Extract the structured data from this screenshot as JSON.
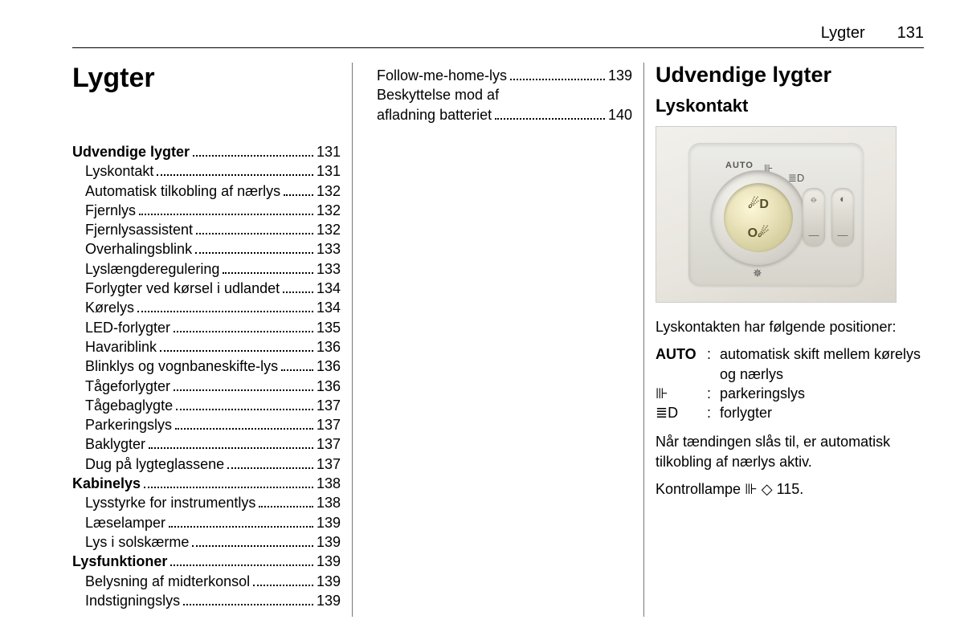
{
  "header": {
    "title": "Lygter",
    "page": "131"
  },
  "col1": {
    "chapter": "Lygter",
    "toc": [
      {
        "label": "Udvendige lygter",
        "page": "131",
        "bold": true
      },
      {
        "label": "Lyskontakt",
        "page": "131",
        "sub": true
      },
      {
        "label": "Automatisk tilkobling af nærlys",
        "page": "132",
        "sub": true
      },
      {
        "label": "Fjernlys",
        "page": "132",
        "sub": true
      },
      {
        "label": "Fjernlysassistent",
        "page": "132",
        "sub": true
      },
      {
        "label": "Overhalingsblink",
        "page": "133",
        "sub": true
      },
      {
        "label": "Lyslængderegulering",
        "page": "133",
        "sub": true
      },
      {
        "label": "Forlygter ved kørsel i udlandet",
        "page": "134",
        "sub": true
      },
      {
        "label": "Kørelys",
        "page": "134",
        "sub": true
      },
      {
        "label": "LED-forlygter",
        "page": "135",
        "sub": true
      },
      {
        "label": "Havariblink",
        "page": "136",
        "sub": true
      },
      {
        "label": "Blinklys og vognbaneskifte-lys",
        "page": "136",
        "sub": true
      },
      {
        "label": "Tågeforlygter",
        "page": "136",
        "sub": true
      },
      {
        "label": "Tågebaglygte",
        "page": "137",
        "sub": true
      },
      {
        "label": "Parkeringslys",
        "page": "137",
        "sub": true
      },
      {
        "label": "Baklygter",
        "page": "137",
        "sub": true
      },
      {
        "label": "Dug på lygteglassene",
        "page": "137",
        "sub": true
      },
      {
        "label": "Kabinelys",
        "page": "138",
        "bold": true
      },
      {
        "label": "Lysstyrke for instrumentlys",
        "page": "138",
        "sub": true
      },
      {
        "label": "Læselamper",
        "page": "139",
        "sub": true
      },
      {
        "label": "Lys i solskærme",
        "page": "139",
        "sub": true
      },
      {
        "label": "Lysfunktioner",
        "page": "139",
        "bold": true
      },
      {
        "label": "Belysning af midterkonsol",
        "page": "139",
        "sub": true
      },
      {
        "label": "Indstigningslys",
        "page": "139",
        "sub": true
      }
    ]
  },
  "col2": {
    "toc": [
      {
        "label": "Follow-me-home-lys",
        "page": "139",
        "sub": true
      },
      {
        "label": "Beskyttelse mod afladning af batteriet",
        "page": "140",
        "sub": true,
        "wrap": true
      }
    ]
  },
  "col3": {
    "section": "Udvendige lygter",
    "subsection": "Lyskontakt",
    "figure": {
      "auto": "AUTO",
      "park_mark": "⊪",
      "head_mark": "≣D",
      "off_mark": "✵",
      "fog_front": "☄D",
      "fog_rear": "O☄"
    },
    "intro": "Lyskontakten har følgende positioner:",
    "defs": [
      {
        "key": "AUTO",
        "keybold": true,
        "val": "automatisk skift mellem kørelys og nærlys"
      },
      {
        "key": "⊪",
        "val": "parkeringslys"
      },
      {
        "key": "≣D",
        "val": "forlygter"
      }
    ],
    "para1": "Når tændingen slås til, er automatisk tilkobling af nærlys aktiv.",
    "para2_pre": "Kontrollampe ",
    "para2_sym": "⊪",
    "para2_post": " ◇ 115."
  }
}
